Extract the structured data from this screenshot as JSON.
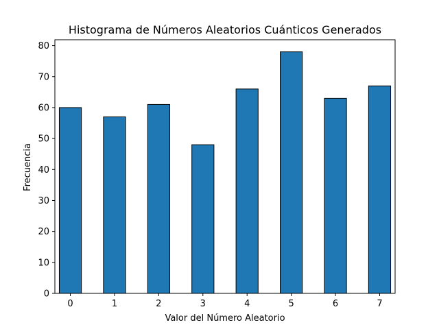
{
  "chart_data": {
    "type": "bar",
    "title": "Histograma de Números Aleatorios Cuánticos Generados",
    "xlabel": "Valor del Número Aleatorio",
    "ylabel": "Frecuencia",
    "x": [
      0,
      1,
      2,
      3,
      4,
      5,
      6,
      7
    ],
    "values": [
      60,
      57,
      61,
      48,
      66,
      78,
      63,
      67
    ],
    "bar_width": 0.5,
    "xlim": [
      -0.35,
      7.35
    ],
    "ylim": [
      0,
      81.9
    ],
    "xticks": [
      0,
      1,
      2,
      3,
      4,
      5,
      6,
      7
    ],
    "yticks": [
      0,
      10,
      20,
      30,
      40,
      50,
      60,
      70,
      80
    ],
    "bar_color": "#1f77b4",
    "edge_color": "#000000",
    "grid": false,
    "legend": "none"
  }
}
